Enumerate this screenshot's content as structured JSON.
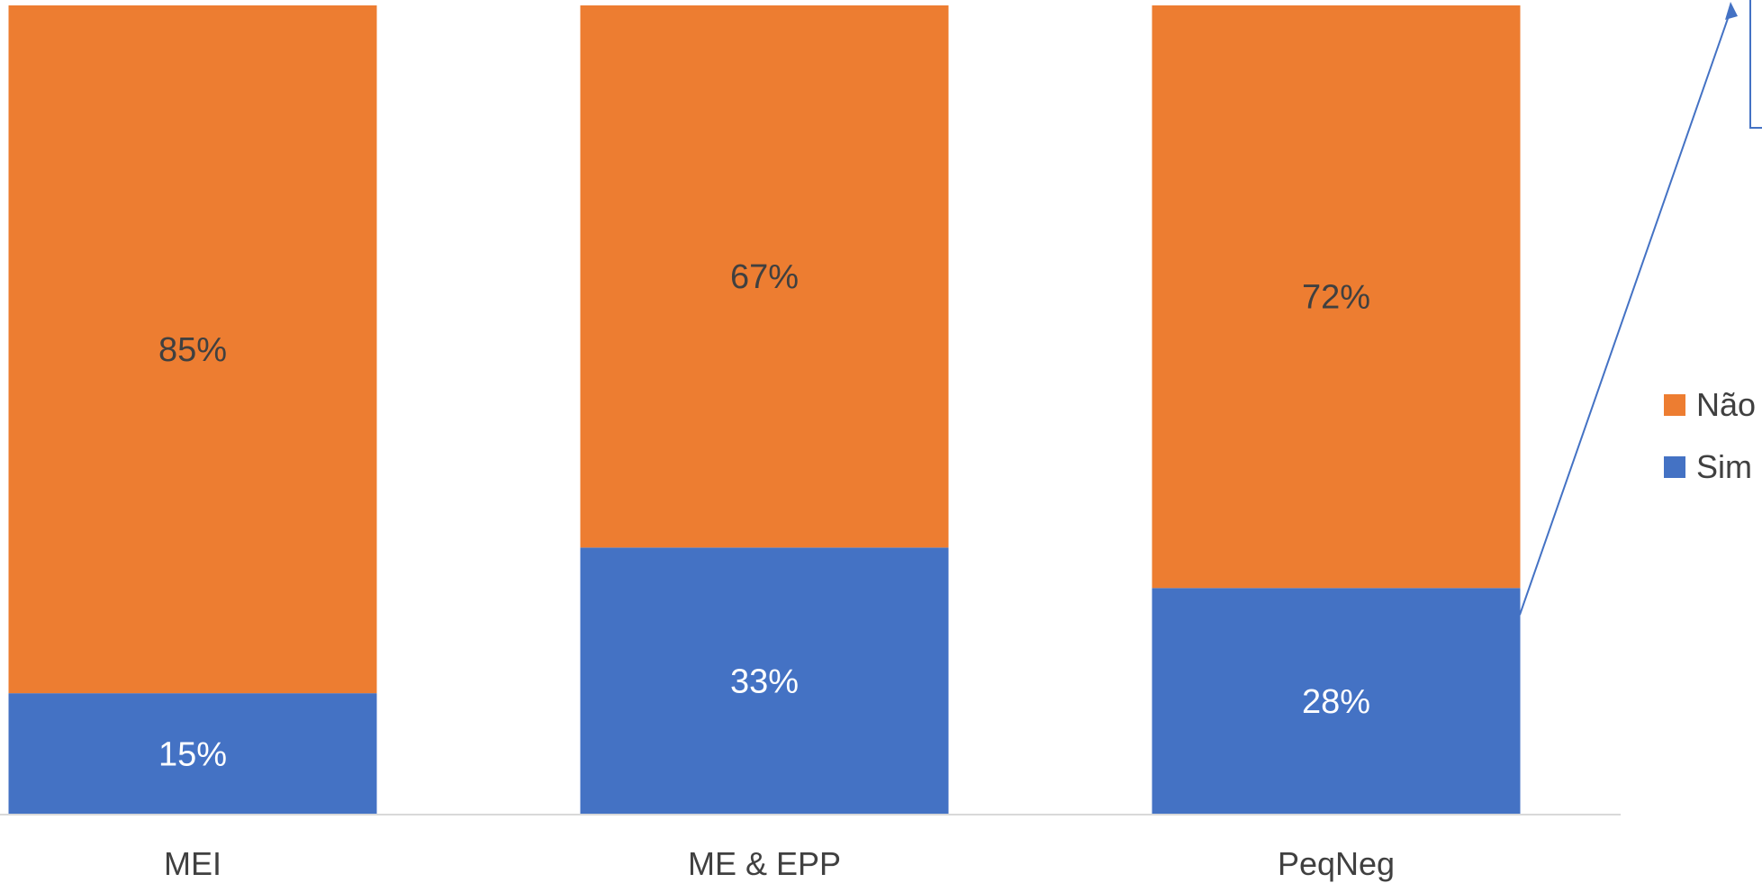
{
  "colors": {
    "nao": "#ED7D31",
    "sim": "#4472C4",
    "axis": "#D9D9D9",
    "text": "#404040",
    "arrow": "#4472C4"
  },
  "chart_data": {
    "type": "bar",
    "stacked": true,
    "percent": true,
    "categories": [
      "MEI",
      "ME & EPP",
      "PeqNeg"
    ],
    "series": [
      {
        "name": "Sim",
        "values": [
          15,
          33,
          28
        ],
        "color": "#4472C4",
        "labels": [
          "15%",
          "33%",
          "28%"
        ]
      },
      {
        "name": "Não",
        "values": [
          85,
          67,
          72
        ],
        "color": "#ED7D31",
        "labels": [
          "85%",
          "67%",
          "72%"
        ]
      }
    ],
    "ylim": [
      0,
      100
    ],
    "legend_position": "right",
    "legend": [
      "Não",
      "Sim"
    ],
    "annotation": "callout arrow from PeqNeg Sim segment to a box at top-right (partially out of frame)"
  }
}
